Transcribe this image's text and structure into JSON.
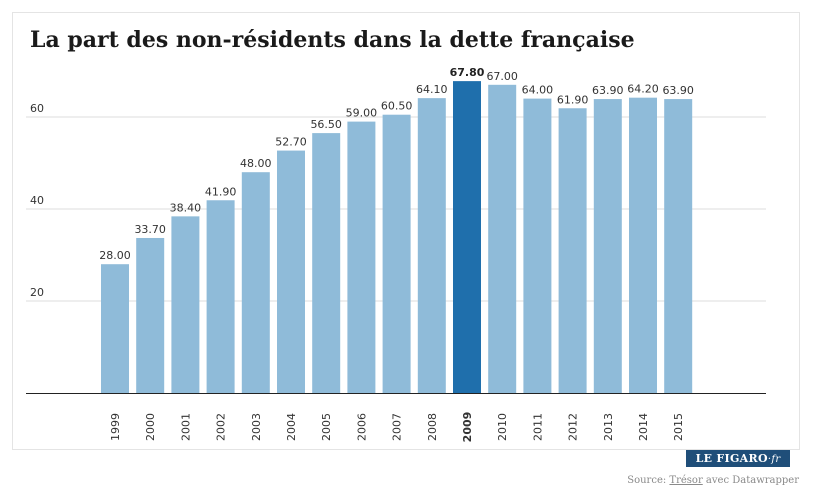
{
  "title": "La part des non-résidents dans la dette française",
  "source": {
    "prefix": "Source:",
    "link": "Trésor",
    "suffix": "avec Datawrapper"
  },
  "logo": {
    "main": "LE FIGARO",
    "suffix": "·fr"
  },
  "colors": {
    "bar": "#8fbbd9",
    "highlight": "#1f6fac",
    "grid": "#dddddd",
    "text": "#333333"
  },
  "chart_data": {
    "type": "bar",
    "categories": [
      "1999",
      "2000",
      "2001",
      "2002",
      "2003",
      "2004",
      "2005",
      "2006",
      "2007",
      "2008",
      "2009",
      "2010",
      "2011",
      "2012",
      "2013",
      "2014",
      "2015"
    ],
    "values": [
      28.0,
      33.7,
      38.4,
      41.9,
      48.0,
      52.7,
      56.5,
      59.0,
      60.5,
      64.1,
      67.8,
      67.0,
      64.0,
      61.9,
      63.9,
      64.2,
      63.9
    ],
    "value_labels": [
      "28.00",
      "33.70",
      "38.40",
      "41.90",
      "48.00",
      "52.70",
      "56.50",
      "59.00",
      "60.50",
      "64.10",
      "67.80",
      "67.00",
      "64.00",
      "61.90",
      "63.90",
      "64.20",
      "63.90"
    ],
    "highlight": "2009",
    "yticks": [
      20,
      40,
      60
    ],
    "ylim": [
      0,
      70
    ],
    "grid": true,
    "title": "La part des non-résidents dans la dette française",
    "xlabel": "",
    "ylabel": ""
  }
}
